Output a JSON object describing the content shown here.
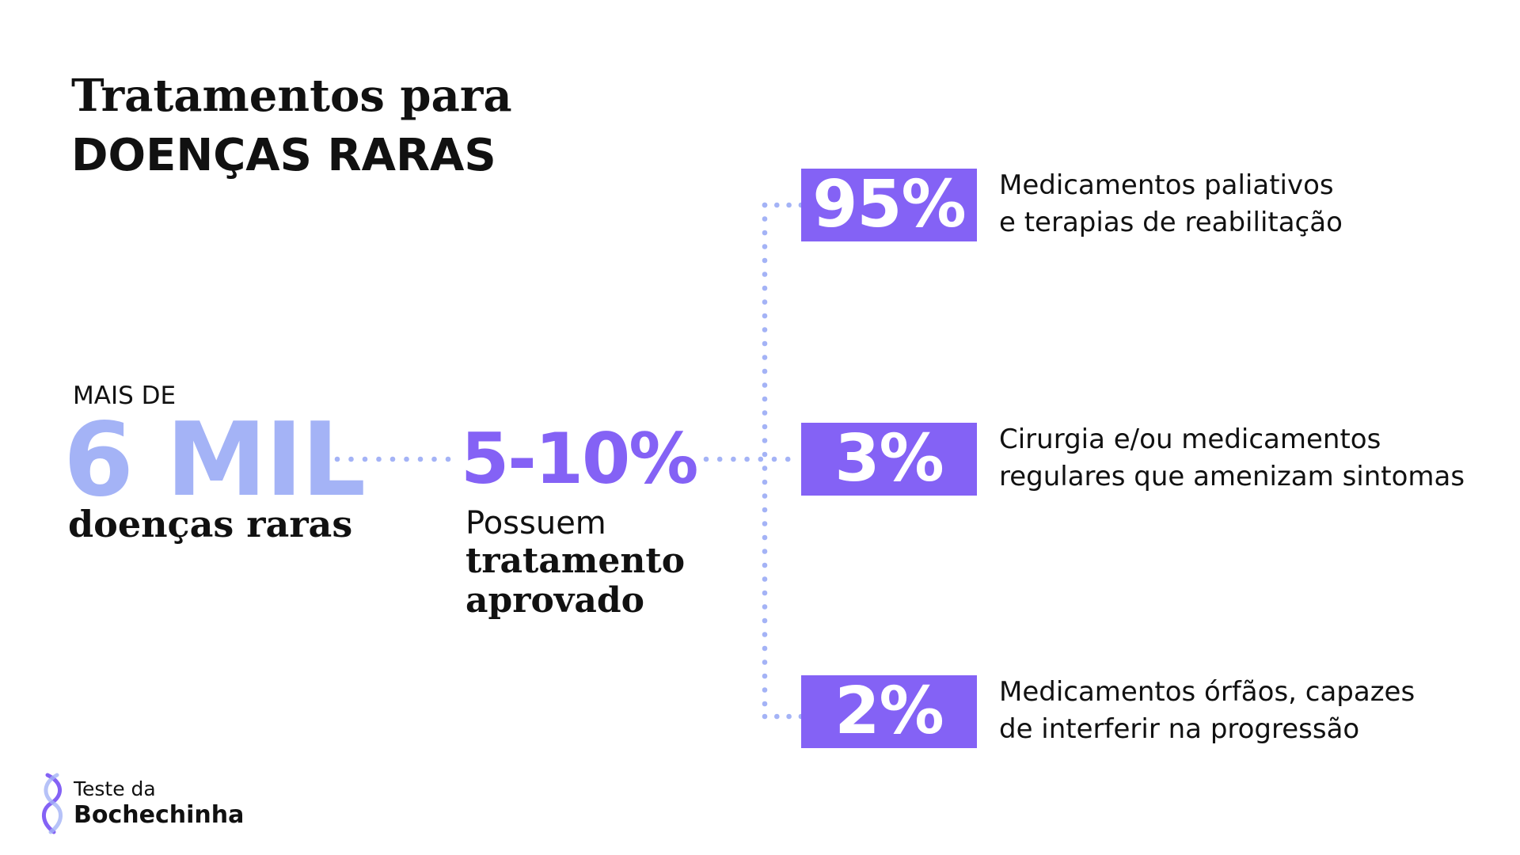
{
  "title": {
    "line1": "Tratamentos para",
    "line2": "DOENÇAS RARAS"
  },
  "total": {
    "prefix": "MAIS DE",
    "value": "6 MIL",
    "caption": "doenças raras"
  },
  "treated": {
    "value": "5-10%",
    "line1": "Possuem",
    "line2": "tratamento",
    "line3": "aprovado"
  },
  "branches": [
    {
      "percent": "95%",
      "line1": "Medicamentos paliativos",
      "line2": "e terapias de reabilitação"
    },
    {
      "percent": "3%",
      "line1": "Cirurgia e/ou medicamentos",
      "line2": "regulares que amenizam sintomas"
    },
    {
      "percent": "2%",
      "line1": "Medicamentos órfãos, capazes",
      "line2": "de interferir na progressão"
    }
  ],
  "logo": {
    "line1": "Teste da",
    "line2": "Bochechinha"
  },
  "colors": {
    "accent": "#8462f5",
    "light_accent": "#a4b3f6",
    "dots": "#a4b3f6",
    "text": "#111111"
  }
}
